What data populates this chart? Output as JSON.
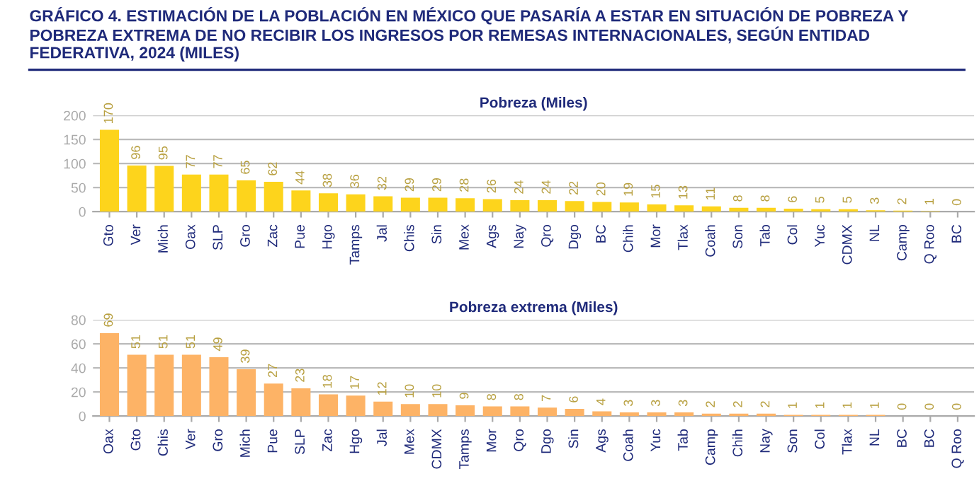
{
  "chart_data": [
    {
      "type": "bar",
      "title": "GRÁFICO 4. ESTIMACIÓN DE LA POBLACIÓN EN MÉXICO QUE PASARÍA A ESTAR EN SITUACIÓN DE POBREZA Y POBREZA EXTREMA DE NO RECIBIR LOS INGRESOS POR REMESAS INTERNACIONALES, SEGÚN ENTIDAD FEDERATIVA, 2024 (MILES)",
      "subtitle": "Pobreza (Miles)",
      "categories": [
        "Gto",
        "Ver",
        "Mich",
        "Oax",
        "SLP",
        "Gro",
        "Zac",
        "Pue",
        "Hgo",
        "Tamps",
        "Jal",
        "Chis",
        "Sin",
        "Mex",
        "Ags",
        "Nay",
        "Qro",
        "Dgo",
        "BC",
        "Chih",
        "Mor",
        "Tlax",
        "Coah",
        "Son",
        "Tab",
        "Col",
        "Yuc",
        "CDMX",
        "NL",
        "Camp",
        "Q Roo",
        "BC"
      ],
      "values": [
        170,
        96,
        95,
        77,
        77,
        65,
        62,
        44,
        38,
        36,
        32,
        29,
        29,
        28,
        26,
        24,
        24,
        22,
        20,
        19,
        15,
        13,
        11,
        8,
        8,
        6,
        5,
        5,
        3,
        2,
        1,
        0
      ],
      "color": "#fdd41c",
      "ylim": [
        0,
        200
      ],
      "yticks": [
        0,
        50,
        100,
        150,
        200
      ],
      "grid": "y",
      "data_labels": true
    },
    {
      "type": "bar",
      "subtitle": "Pobreza extrema (Miles)",
      "categories": [
        "Oax",
        "Gto",
        "Chis",
        "Ver",
        "Gro",
        "Mich",
        "Pue",
        "SLP",
        "Zac",
        "Hgo",
        "Jal",
        "Mex",
        "CDMX",
        "Tamps",
        "Mor",
        "Qro",
        "Dgo",
        "Sin",
        "Ags",
        "Coah",
        "Yuc",
        "Tab",
        "Camp",
        "Chih",
        "Nay",
        "Son",
        "Col",
        "Tlax",
        "NL",
        "BC",
        "BC",
        "Q Roo"
      ],
      "values": [
        69,
        51,
        51,
        51,
        49,
        39,
        27,
        23,
        18,
        17,
        12,
        10,
        10,
        9,
        8,
        8,
        7,
        6,
        4,
        3,
        3,
        3,
        2,
        2,
        2,
        1,
        1,
        1,
        1,
        0,
        0,
        0
      ],
      "color": "#fdb366",
      "ylim": [
        0,
        80
      ],
      "yticks": [
        0,
        20,
        40,
        60,
        80
      ],
      "grid": "y",
      "data_labels": true
    }
  ]
}
